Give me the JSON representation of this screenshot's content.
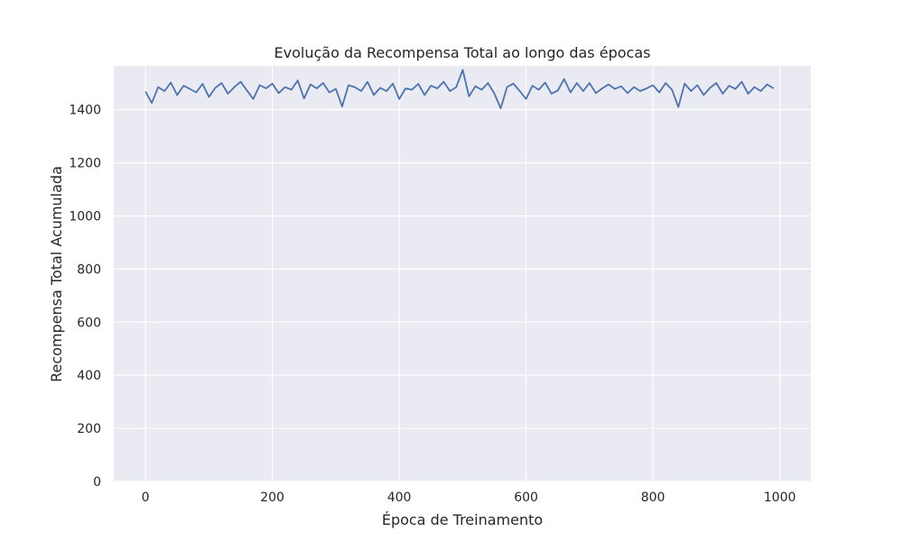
{
  "chart_data": {
    "type": "line",
    "title": "Evolução da Recompensa Total ao longo das épocas",
    "xlabel": "Época de Treinamento",
    "ylabel": "Recompensa Total Acumulada",
    "xlim": [
      -50,
      1049
    ],
    "ylim": [
      0,
      1565
    ],
    "xticks": [
      0,
      200,
      400,
      600,
      800,
      1000
    ],
    "yticks": [
      0,
      200,
      400,
      600,
      800,
      1000,
      1200,
      1400
    ],
    "grid": true,
    "legend": "none",
    "series": [
      {
        "x_start": 0,
        "x_step": 10,
        "values": [
          1468,
          1425,
          1485,
          1470,
          1502,
          1455,
          1490,
          1478,
          1465,
          1497,
          1448,
          1482,
          1500,
          1460,
          1485,
          1505,
          1472,
          1440,
          1492,
          1480,
          1498,
          1462,
          1485,
          1475,
          1510,
          1442,
          1495,
          1480,
          1500,
          1465,
          1478,
          1412,
          1492,
          1485,
          1470,
          1505,
          1455,
          1482,
          1470,
          1498,
          1440,
          1480,
          1475,
          1497,
          1455,
          1490,
          1480,
          1505,
          1470,
          1485,
          1550,
          1450,
          1488,
          1475,
          1500,
          1460,
          1405,
          1485,
          1498,
          1470,
          1440,
          1490,
          1475,
          1502,
          1460,
          1472,
          1515,
          1465,
          1500,
          1470,
          1500,
          1462,
          1480,
          1495,
          1478,
          1488,
          1462,
          1485,
          1470,
          1480,
          1492,
          1465,
          1500,
          1475,
          1410,
          1498,
          1470,
          1492,
          1455,
          1482,
          1500,
          1460,
          1490,
          1478,
          1505,
          1460,
          1485,
          1470,
          1495,
          1480
        ]
      }
    ],
    "colors": {
      "line": "#4c72b0",
      "plot_background": "#eaeaf2",
      "grid": "#ffffff",
      "text": "#262626"
    }
  }
}
